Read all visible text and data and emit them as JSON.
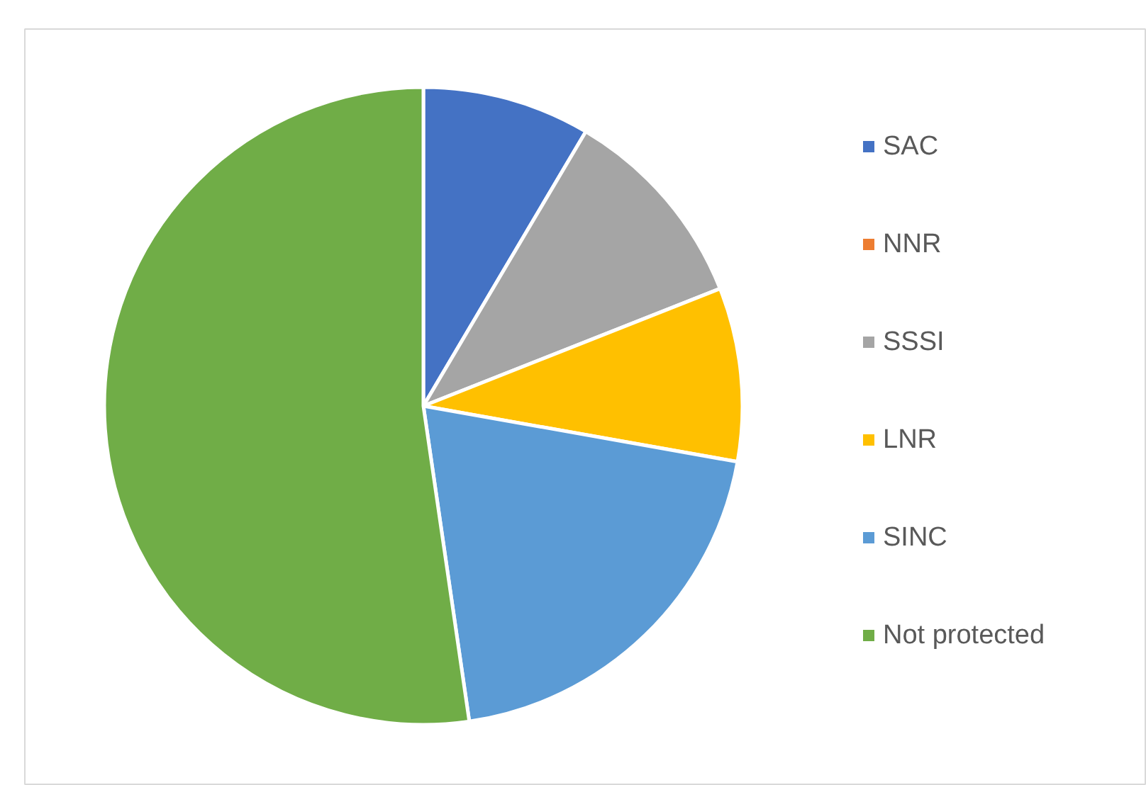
{
  "chart_data": {
    "type": "pie",
    "categories": [
      "SAC",
      "NNR",
      "SSSI",
      "LNR",
      "SINC",
      "Not protected"
    ],
    "values": [
      8.5,
      0,
      10.5,
      8.8,
      19.9,
      52.3
    ],
    "colors": [
      "#4472c4",
      "#ed7d31",
      "#a5a5a5",
      "#ffc000",
      "#5b9bd5",
      "#70ad47"
    ],
    "legend": "right"
  }
}
